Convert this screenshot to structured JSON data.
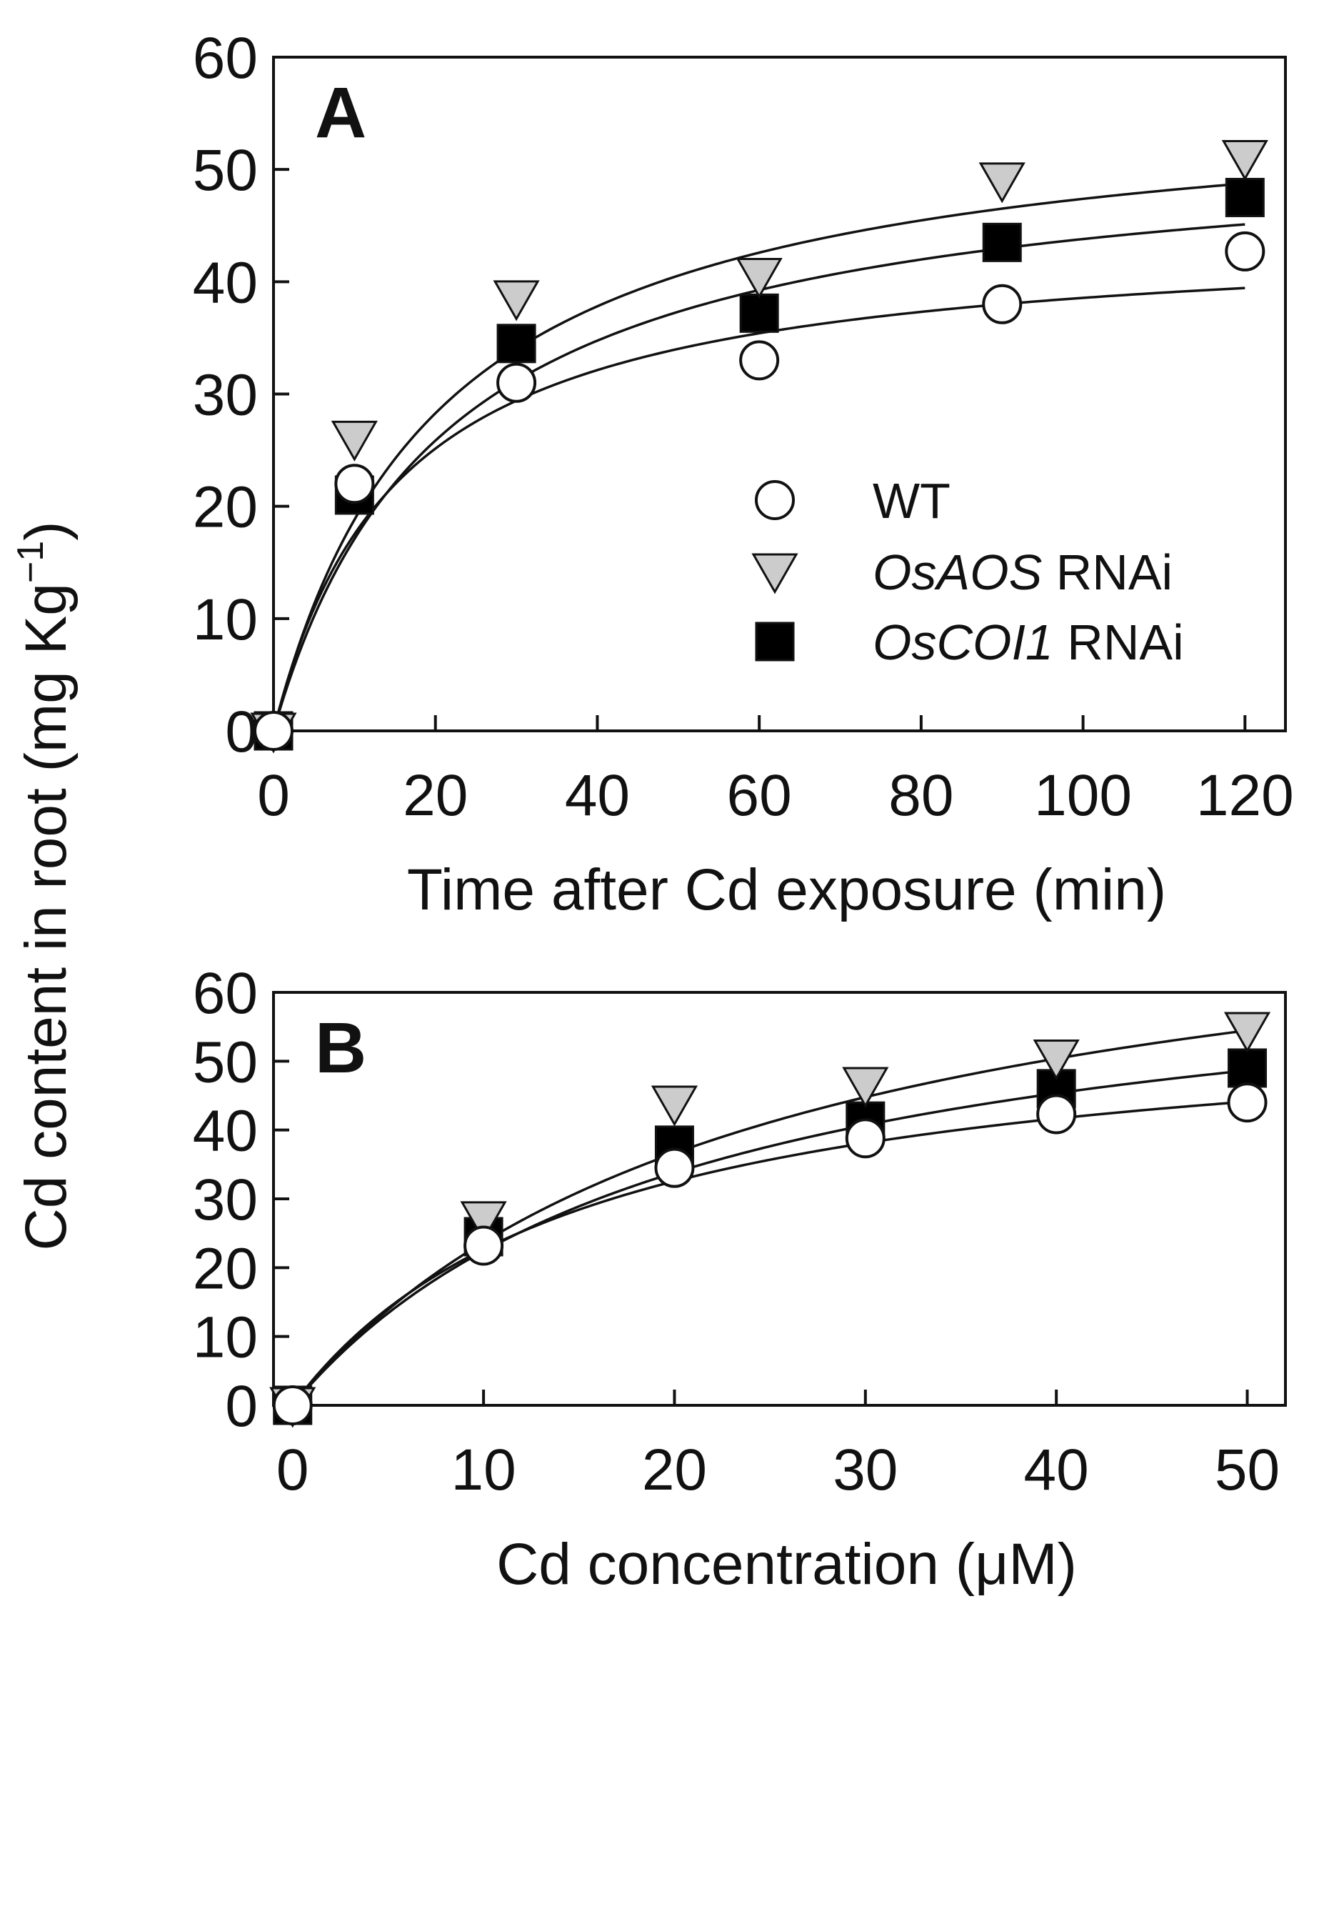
{
  "figure": {
    "ylabel": "Cd content in root (mg Kg",
    "ylabel_sup": "−1",
    "ylabel_close": ")"
  },
  "legend": [
    {
      "name": "WT",
      "italic": "",
      "suffix": "",
      "marker": "circle",
      "fill": "#ffffff"
    },
    {
      "name": "OsAOS RNAi",
      "italic": "OsAOS",
      "suffix": " RNAi",
      "marker": "triangle-down",
      "fill": "#cccccc"
    },
    {
      "name": "OsCOI1 RNAi",
      "italic": "OsCOI1",
      "suffix": " RNAi",
      "marker": "square",
      "fill": "#000000"
    }
  ],
  "chart_data": [
    {
      "type": "scatter",
      "panel": "A",
      "title": "",
      "xlabel": "Time after Cd exposure (min)",
      "ylabel": "Cd content in root (mg Kg−1)",
      "xlim": [
        0,
        125
      ],
      "ylim": [
        0,
        60
      ],
      "xticks": [
        0,
        20,
        40,
        60,
        80,
        100,
        120
      ],
      "yticks": [
        0,
        10,
        20,
        30,
        40,
        50,
        60
      ],
      "grid": false,
      "legend_position": "right-center",
      "x": [
        0,
        10,
        30,
        60,
        90,
        120
      ],
      "series": [
        {
          "name": "WT",
          "values": [
            0,
            22,
            31,
            33,
            38,
            42.7
          ],
          "fit": {
            "model": "hyperbolic",
            "vmax": 44.5,
            "k": 15.4,
            "x_end": 120
          }
        },
        {
          "name": "OsAOS RNAi",
          "values": [
            0,
            26,
            38.5,
            40.5,
            49,
            51
          ],
          "fit": {
            "model": "hyperbolic",
            "vmax": 57,
            "k": 20.3,
            "x_end": 120
          }
        },
        {
          "name": "OsCOI1 RNAi",
          "values": [
            0,
            21,
            34.5,
            37.2,
            43.5,
            47.5
          ],
          "fit": {
            "model": "hyperbolic",
            "vmax": 53,
            "k": 21,
            "x_end": 120
          }
        }
      ]
    },
    {
      "type": "scatter",
      "panel": "B",
      "title": "",
      "xlabel": "Cd concentration (μM)",
      "ylabel": "Cd content in root (mg Kg−1)",
      "xlim": [
        -1,
        52
      ],
      "ylim": [
        0,
        60
      ],
      "xticks": [
        0,
        10,
        20,
        30,
        40,
        50
      ],
      "yticks": [
        0,
        10,
        20,
        30,
        40,
        50,
        60
      ],
      "grid": false,
      "x": [
        0,
        10,
        20,
        30,
        40,
        50
      ],
      "series": [
        {
          "name": "WT",
          "values": [
            0,
            23.2,
            34.5,
            38.8,
            42.3,
            44
          ],
          "fit": {
            "model": "hyperbolic",
            "vmax": 57.8,
            "k": 15.5,
            "x_end": 50
          }
        },
        {
          "name": "OsAOS RNAi",
          "values": [
            0,
            27,
            43.8,
            46.5,
            50.5,
            54.5
          ],
          "fit": {
            "model": "hyperbolic",
            "vmax": 80.6,
            "k": 24,
            "x_end": 50
          }
        },
        {
          "name": "OsCOI1 RNAi",
          "values": [
            0,
            24.5,
            37.8,
            41.3,
            46,
            49
          ],
          "fit": {
            "model": "hyperbolic",
            "vmax": 68.8,
            "k": 20.7,
            "x_end": 50
          }
        }
      ]
    }
  ]
}
